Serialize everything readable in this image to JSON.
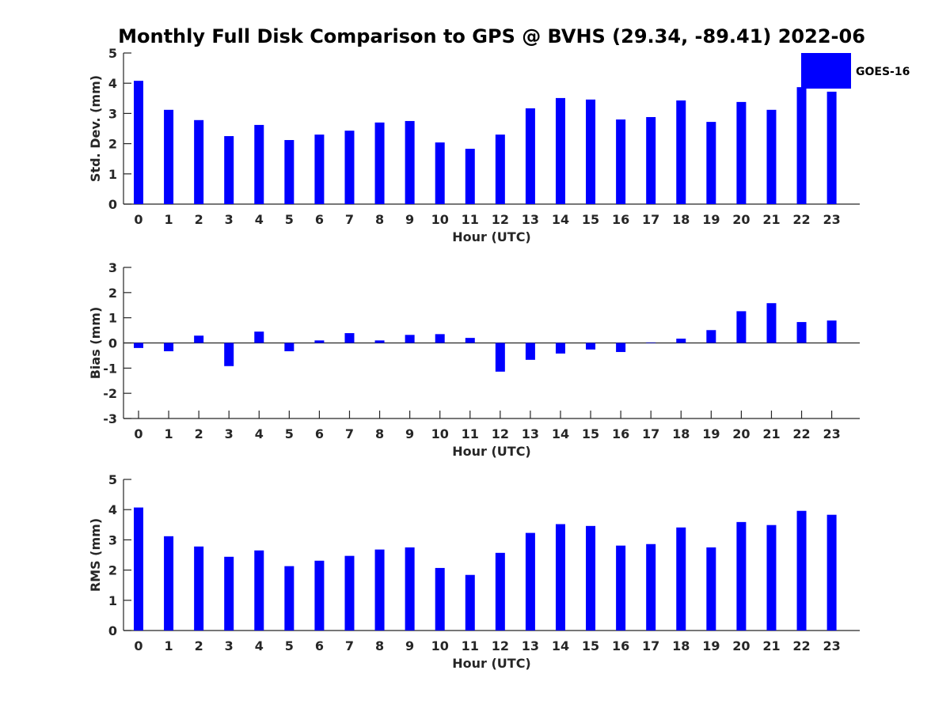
{
  "title": "Monthly Full Disk Comparison to GPS @ BVHS (29.34, -89.41) 2022-06",
  "legend": {
    "label": "GOES-16",
    "color": "#0000ff",
    "placement": "top-right"
  },
  "chart_data": [
    {
      "type": "bar",
      "name": "std-dev",
      "title": "Monthly Full Disk Comparison to GPS @ BVHS (29.34, -89.41) 2022-06",
      "xlabel": "Hour (UTC)",
      "ylabel": "Std. Dev. (mm)",
      "ylim": [
        0,
        5
      ],
      "yticks": [
        "0",
        "1",
        "2",
        "3",
        "4",
        "5"
      ],
      "categories": [
        "0",
        "1",
        "2",
        "3",
        "4",
        "5",
        "6",
        "7",
        "8",
        "9",
        "10",
        "11",
        "12",
        "13",
        "14",
        "15",
        "16",
        "17",
        "18",
        "19",
        "20",
        "21",
        "22",
        "23"
      ],
      "series": [
        {
          "name": "GOES-16",
          "color": "#0000ff",
          "values": [
            4.08,
            3.12,
            2.78,
            2.25,
            2.62,
            2.12,
            2.3,
            2.43,
            2.7,
            2.75,
            2.04,
            1.83,
            2.3,
            3.17,
            3.51,
            3.46,
            2.8,
            2.88,
            3.43,
            2.72,
            3.38,
            3.12,
            3.87,
            3.72
          ]
        }
      ],
      "grid": false,
      "legend": "top-right"
    },
    {
      "type": "bar",
      "name": "bias",
      "xlabel": "Hour (UTC)",
      "ylabel": "Bias (mm)",
      "ylim": [
        -3,
        3
      ],
      "yticks": [
        "-3",
        "-2",
        "-1",
        "0",
        "1",
        "2",
        "3"
      ],
      "categories": [
        "0",
        "1",
        "2",
        "3",
        "4",
        "5",
        "6",
        "7",
        "8",
        "9",
        "10",
        "11",
        "12",
        "13",
        "14",
        "15",
        "16",
        "17",
        "18",
        "19",
        "20",
        "21",
        "22",
        "23"
      ],
      "series": [
        {
          "name": "GOES-16",
          "color": "#0000ff",
          "values": [
            -0.2,
            -0.33,
            0.29,
            -0.92,
            0.45,
            -0.33,
            0.1,
            0.39,
            0.1,
            0.32,
            0.35,
            0.2,
            -1.14,
            -0.67,
            -0.42,
            -0.26,
            -0.36,
            0.02,
            0.17,
            0.51,
            1.26,
            1.58,
            0.83,
            0.89
          ]
        }
      ],
      "grid": false
    },
    {
      "type": "bar",
      "name": "rms",
      "xlabel": "Hour (UTC)",
      "ylabel": "RMS (mm)",
      "ylim": [
        0,
        5
      ],
      "yticks": [
        "0",
        "1",
        "2",
        "3",
        "4",
        "5"
      ],
      "categories": [
        "0",
        "1",
        "2",
        "3",
        "4",
        "5",
        "6",
        "7",
        "8",
        "9",
        "10",
        "11",
        "12",
        "13",
        "14",
        "15",
        "16",
        "17",
        "18",
        "19",
        "20",
        "21",
        "22",
        "23"
      ],
      "series": [
        {
          "name": "GOES-16",
          "color": "#0000ff",
          "values": [
            4.07,
            3.12,
            2.78,
            2.44,
            2.65,
            2.13,
            2.31,
            2.47,
            2.68,
            2.75,
            2.07,
            1.84,
            2.57,
            3.23,
            3.52,
            3.46,
            2.81,
            2.86,
            3.41,
            2.75,
            3.59,
            3.49,
            3.96,
            3.83
          ]
        }
      ],
      "grid": false
    }
  ]
}
